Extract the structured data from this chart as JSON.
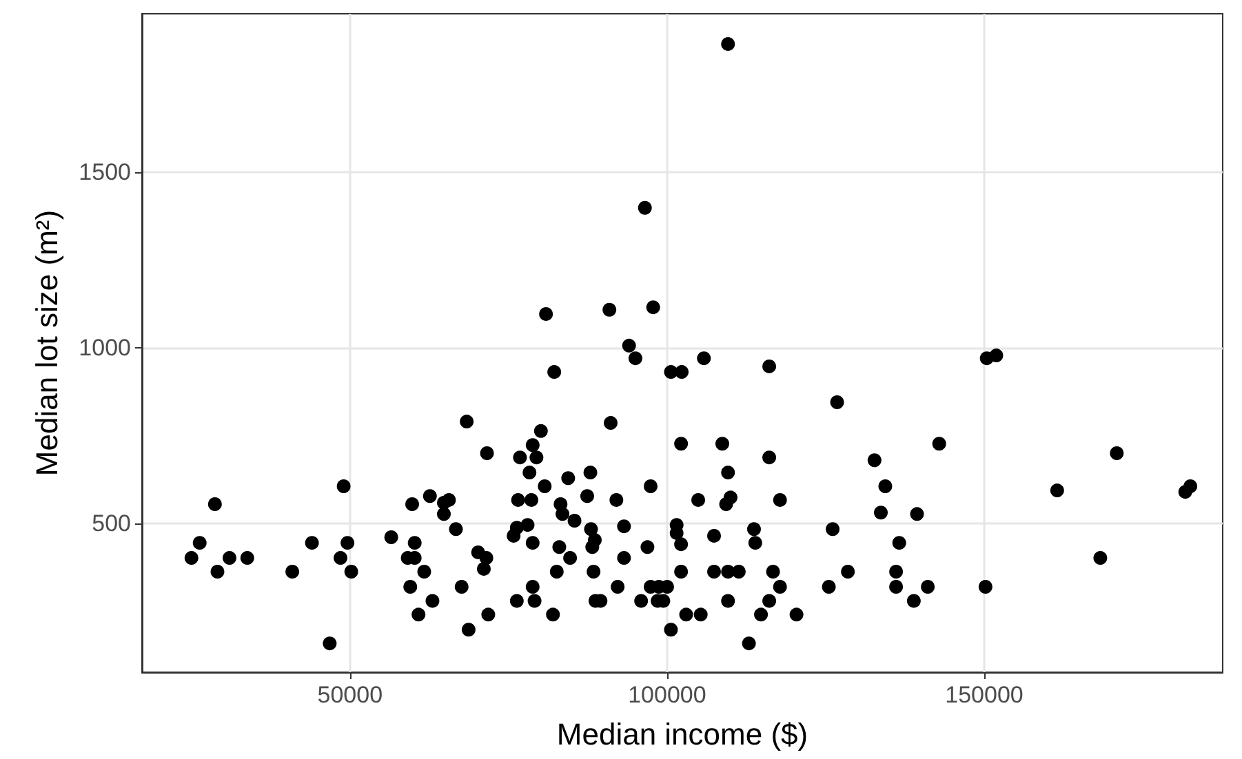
{
  "chart_data": {
    "type": "scatter",
    "xlabel": "Median income ($)",
    "ylabel": "Median lot size (m²)",
    "xlim": [
      17200,
      187600
    ],
    "ylim": [
      77,
      1950
    ],
    "xticks": [
      50000,
      100000,
      150000
    ],
    "yticks": [
      500,
      1000,
      1500
    ],
    "grid": true,
    "marker": "circle",
    "series": [
      {
        "color": "#000000",
        "x": [
          25000,
          26300,
          28700,
          29100,
          31000,
          33800,
          40900,
          44000,
          49000,
          48500,
          49600,
          50200,
          46800,
          56500,
          59800,
          60200,
          59100,
          60200,
          61700,
          59500,
          62600,
          64800,
          65600,
          64800,
          66700,
          63000,
          60800,
          67600,
          68700,
          70200,
          68400,
          71600,
          71500,
          71100,
          71800,
          80100,
          78800,
          76800,
          79400,
          78300,
          80700,
          84400,
          87900,
          87400,
          76500,
          78600,
          83200,
          83500,
          85400,
          92000,
          97400,
          91100,
          78000,
          76300,
          75800,
          78800,
          83000,
          84700,
          88000,
          88600,
          88200,
          93200,
          93200,
          96900,
          82600,
          88400,
          78800,
          76300,
          79100,
          82000,
          88700,
          89500,
          92200,
          95900,
          97400,
          98700,
          100000,
          98500,
          99400,
          102200,
          108700,
          109600,
          104900,
          110000,
          109300,
          101500,
          101500,
          102200,
          107400,
          102200,
          107400,
          109600,
          111300,
          109600,
          103000,
          105300,
          100600,
          112900,
          113700,
          113900,
          126800,
          142900,
          132700,
          134400,
          133700,
          139400,
          116100,
          117800,
          126100,
          136600,
          116700,
          117800,
          116100,
          114800,
          120400,
          128500,
          125500,
          136100,
          136100,
          141100,
          138900,
          150200,
          161500,
          170900,
          168300,
          181700,
          182500,
          109600,
          96500,
          80900,
          90900,
          97800,
          94000,
          95000,
          82200,
          100600,
          102300,
          105800,
          116100,
          150400,
          151900
        ],
        "values": [
          402,
          445,
          555,
          363,
          402,
          402,
          363,
          445,
          606,
          402,
          445,
          363,
          159,
          461,
          555,
          445,
          402,
          402,
          363,
          320,
          578,
          559,
          567,
          527,
          484,
          280,
          241,
          320,
          198,
          418,
          790,
          700,
          402,
          371,
          241,
          763,
          723,
          688,
          688,
          645,
          606,
          629,
          645,
          578,
          567,
          567,
          555,
          527,
          508,
          567,
          606,
          786,
          496,
          488,
          465,
          445,
          433,
          402,
          484,
          453,
          433,
          492,
          402,
          433,
          363,
          363,
          320,
          280,
          280,
          241,
          280,
          280,
          320,
          280,
          320,
          320,
          320,
          280,
          280,
          727,
          727,
          645,
          567,
          574,
          555,
          496,
          473,
          441,
          465,
          363,
          363,
          363,
          363,
          280,
          241,
          241,
          198,
          159,
          484,
          445,
          845,
          727,
          680,
          606,
          531,
          527,
          688,
          567,
          484,
          445,
          363,
          320,
          280,
          241,
          241,
          363,
          320,
          363,
          320,
          320,
          280,
          320,
          594,
          700,
          402,
          590,
          606,
          1864,
          1398,
          1096,
          1108,
          1115,
          1006,
          970,
          931,
          931,
          931,
          970,
          947,
          970,
          978
        ]
      }
    ]
  }
}
